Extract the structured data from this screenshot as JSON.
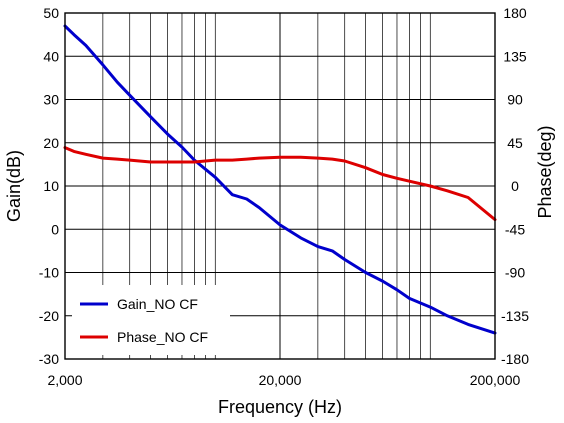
{
  "chart_data": {
    "type": "line",
    "xlabel": "Frequency (Hz)",
    "ylabel_left": "Gain(dB)",
    "ylabel_right": "Phase(deg)",
    "x_scale": "log",
    "xlim": [
      2000,
      200000
    ],
    "ylim_left": [
      -30,
      50
    ],
    "ylim_right": [
      -180,
      180
    ],
    "x_ticks": [
      2000,
      20000,
      200000
    ],
    "x_tick_labels": [
      "2,000",
      "20,000",
      "200,000"
    ],
    "y_left_ticks": [
      50,
      40,
      30,
      20,
      10,
      0,
      -10,
      -20,
      -30
    ],
    "y_left_tick_labels": [
      "50",
      "40",
      "30",
      "20",
      "10",
      "0",
      "-10",
      "-20",
      "-30"
    ],
    "y_right_ticks": [
      180,
      135,
      90,
      45,
      0,
      -45,
      -90,
      -135,
      -180
    ],
    "y_right_tick_labels": [
      "180",
      "135",
      "90",
      "45",
      "0",
      "-45",
      "-90",
      "-135",
      "-180"
    ],
    "grid": true,
    "legend_position": "bottom-left",
    "series": [
      {
        "name": "Gain_NO CF",
        "axis": "left",
        "color": "#0000cc",
        "x": [
          2000,
          2200,
          2500,
          3000,
          3500,
          4000,
          5000,
          6000,
          7000,
          8000,
          10000,
          12000,
          14000,
          16000,
          20000,
          25000,
          30000,
          35000,
          40000,
          50000,
          60000,
          70000,
          80000,
          100000,
          120000,
          150000,
          200000
        ],
        "y": [
          47,
          45,
          42.5,
          38,
          34,
          31,
          26,
          22,
          19,
          16,
          12,
          8,
          7,
          5,
          1,
          -2,
          -4,
          -5,
          -7,
          -10,
          -12,
          -14,
          -16,
          -18,
          -20,
          -22,
          -24
        ]
      },
      {
        "name": "Phase_NO CF",
        "axis": "right",
        "color": "#dd0000",
        "x": [
          2000,
          2200,
          2500,
          3000,
          3500,
          4000,
          5000,
          6000,
          7000,
          8000,
          10000,
          12000,
          14000,
          16000,
          20000,
          25000,
          30000,
          35000,
          40000,
          50000,
          60000,
          70000,
          80000,
          100000,
          120000,
          150000,
          200000
        ],
        "y": [
          40,
          36,
          33,
          29,
          28,
          27,
          25,
          25,
          25,
          25,
          27,
          27,
          28,
          29,
          30,
          30,
          29,
          28,
          26,
          19,
          12,
          8,
          5,
          0,
          -5,
          -12,
          -35
        ]
      }
    ]
  }
}
